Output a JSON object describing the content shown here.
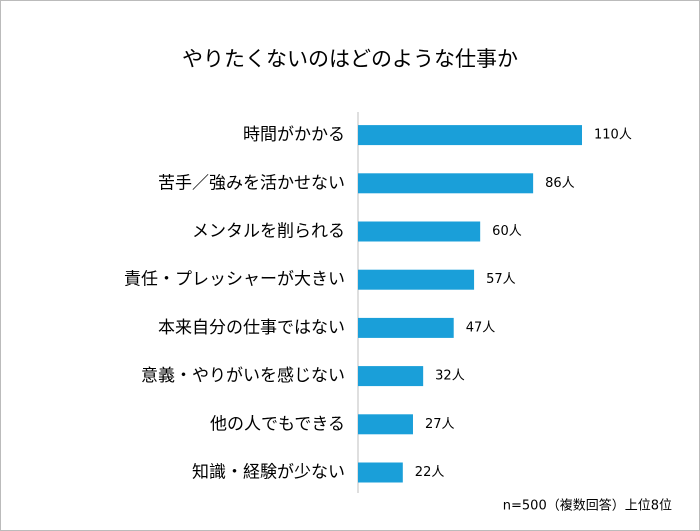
{
  "chart_data": {
    "type": "bar",
    "orientation": "horizontal",
    "title": "やりたくないのはどのような仕事か",
    "categories": [
      "時間がかかる",
      "苦手／強みを活かせない",
      "メンタルを削られる",
      "責任・プレッシャーが大きい",
      "本来自分の仕事ではない",
      "意義・やりがいを感じない",
      "他の人でもできる",
      "知識・経験が少ない"
    ],
    "values": [
      110,
      86,
      60,
      57,
      47,
      32,
      27,
      22
    ],
    "value_labels": [
      "110人",
      "86人",
      "60人",
      "57人",
      "47人",
      "32人",
      "27人",
      "22人"
    ],
    "color": "#1a9fd9",
    "note": "n=500（複数回答）上位8位"
  }
}
